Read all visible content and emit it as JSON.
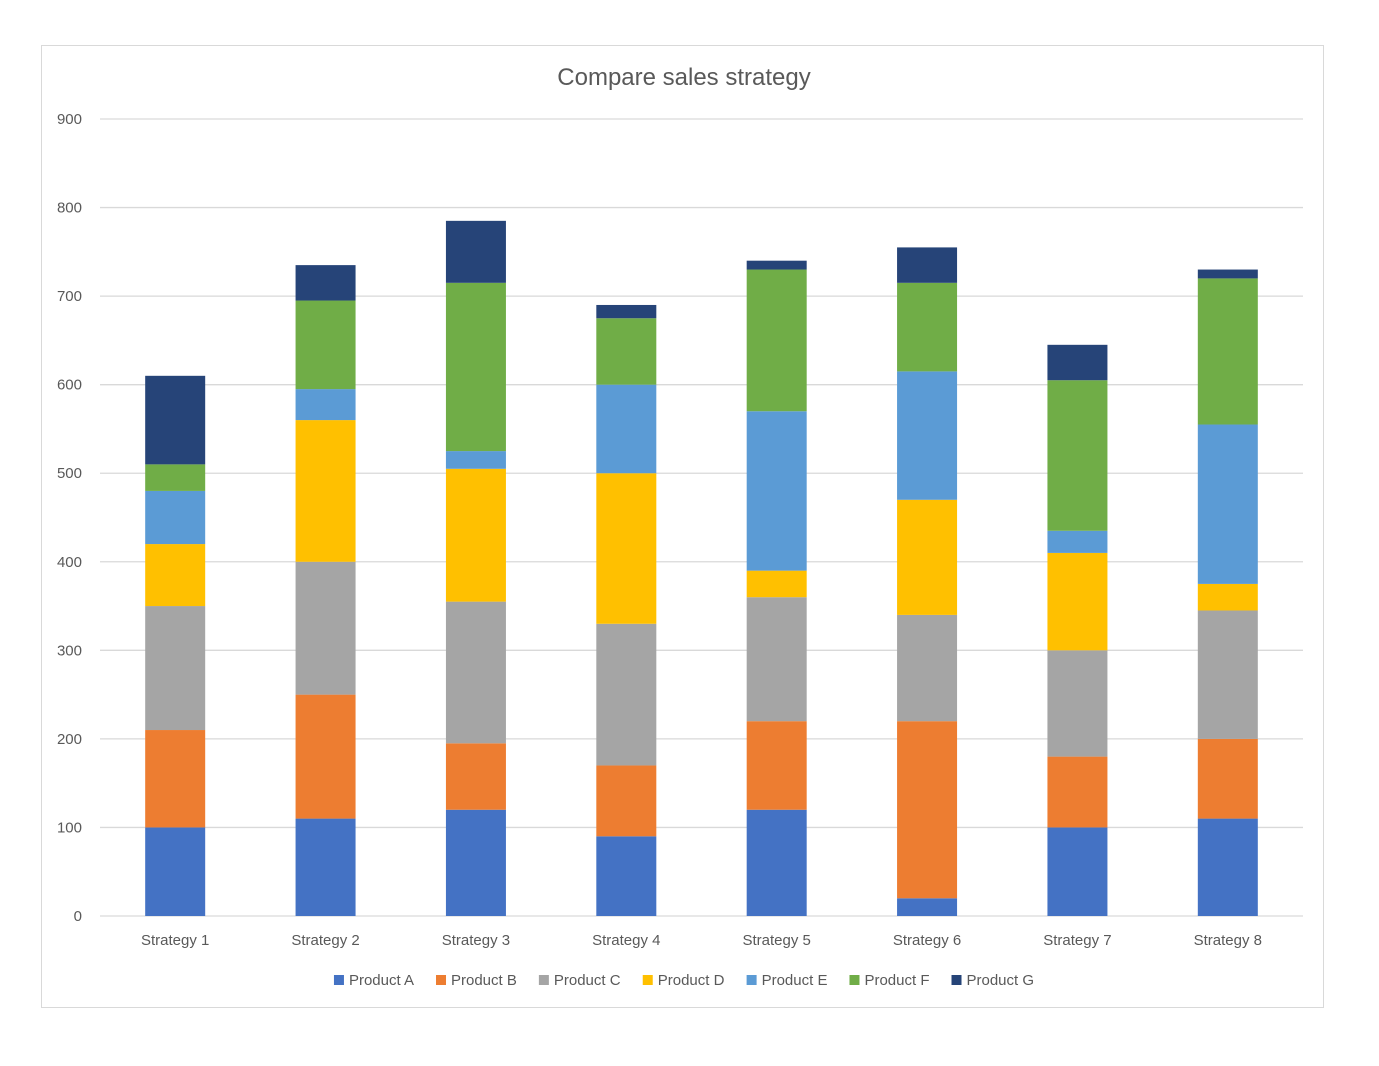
{
  "chart_data": {
    "type": "bar",
    "stacked": true,
    "title": "Compare sales strategy",
    "xlabel": "",
    "ylabel": "",
    "ylim": [
      0,
      900
    ],
    "yticks": [
      0,
      100,
      200,
      300,
      400,
      500,
      600,
      700,
      800,
      900
    ],
    "grid": true,
    "legend_position": "bottom",
    "categories": [
      "Strategy 1",
      "Strategy 2",
      "Strategy 3",
      "Strategy 4",
      "Strategy 5",
      "Strategy 6",
      "Strategy 7",
      "Strategy 8"
    ],
    "series": [
      {
        "name": "Product A",
        "color": "#4472c4",
        "values": [
          100,
          110,
          120,
          90,
          120,
          20,
          100,
          110
        ]
      },
      {
        "name": "Product B",
        "color": "#ed7d31",
        "values": [
          110,
          140,
          75,
          80,
          100,
          200,
          80,
          90
        ]
      },
      {
        "name": "Product C",
        "color": "#a5a5a5",
        "values": [
          140,
          150,
          160,
          160,
          140,
          120,
          120,
          145
        ]
      },
      {
        "name": "Product D",
        "color": "#ffc000",
        "values": [
          70,
          160,
          150,
          170,
          30,
          130,
          110,
          30
        ]
      },
      {
        "name": "Product E",
        "color": "#5b9bd5",
        "values": [
          60,
          35,
          20,
          100,
          180,
          145,
          25,
          180
        ]
      },
      {
        "name": "Product F",
        "color": "#70ad47",
        "values": [
          30,
          100,
          190,
          75,
          160,
          100,
          170,
          165
        ]
      },
      {
        "name": "Product G",
        "color": "#264478",
        "values": [
          100,
          40,
          70,
          15,
          10,
          40,
          40,
          10
        ]
      }
    ]
  }
}
